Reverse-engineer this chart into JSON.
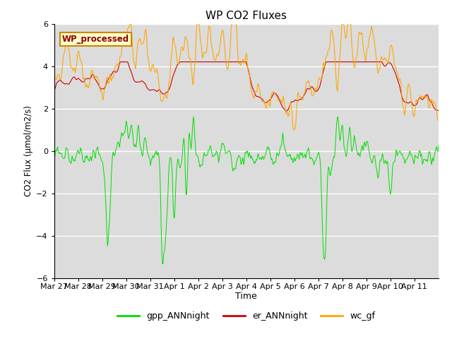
{
  "title": "WP CO2 Fluxes",
  "xlabel": "Time",
  "ylabel": "CO2 Flux (μmol/m2/s)",
  "ylim": [
    -6,
    6
  ],
  "bg_color": "#dcdcdc",
  "annotation_text": "WP_processed",
  "annotation_color": "#8b0000",
  "annotation_bg": "#ffffcc",
  "annotation_border": "#cc8800",
  "series_colors": {
    "gpp_ANNnight": "#00dd00",
    "er_ANNnight": "#cc0000",
    "wc_gf": "#ffa500"
  },
  "tick_labels": [
    "Mar 27",
    "Mar 28",
    "Mar 29",
    "Mar 30",
    "Mar 31",
    "Apr 1",
    "Apr 2",
    "Apr 3",
    "Apr 4",
    "Apr 5",
    "Apr 6",
    "Apr 7",
    "Apr 8",
    "Apr 9",
    "Apr 10",
    "Apr 11"
  ],
  "n_points": 672,
  "seed": 17
}
